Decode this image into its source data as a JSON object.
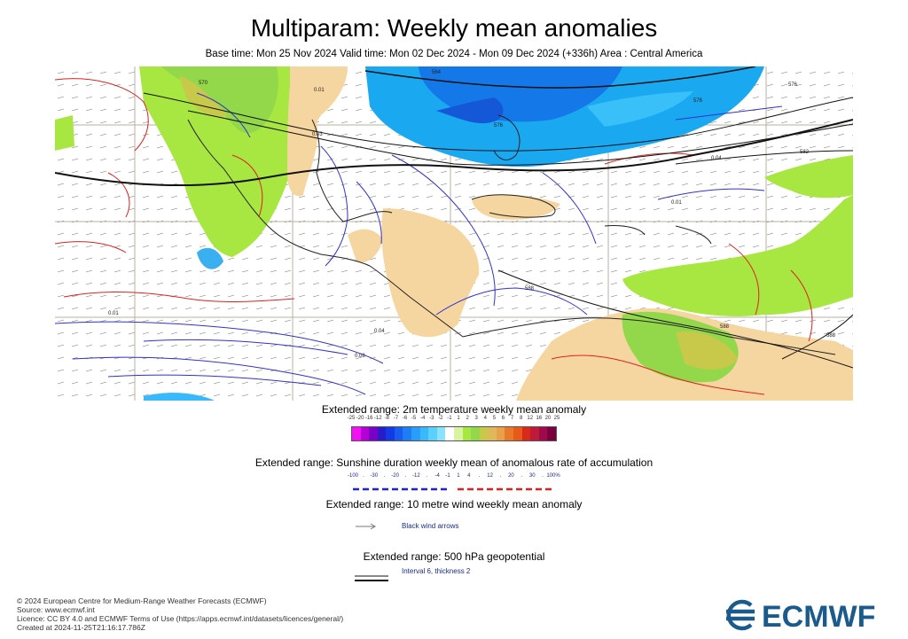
{
  "title": "Multiparam: Weekly mean anomalies",
  "subtitle": "Base time: Mon 25 Nov 2024 Valid time: Mon 02 Dec 2024 - Mon 09 Dec 2024 (+336h) Area : Central America",
  "map": {
    "contour_labels": [
      "564",
      "570",
      "576",
      "576",
      "576",
      "582",
      "588",
      "588",
      "588",
      "0.01",
      "0.01",
      "0.03",
      "0.04",
      "0.04",
      "0.08",
      "0.01"
    ]
  },
  "legends": {
    "temperature": {
      "title": "Extended range: 2m temperature weekly mean anomaly",
      "ticks": [
        "-25",
        "-20",
        "-16",
        "-12",
        "-8",
        "-7",
        "-6",
        "-5",
        "-4",
        "-3",
        "-2",
        "-1",
        "1",
        "2",
        "3",
        "4",
        "5",
        "6",
        "7",
        "8",
        "12",
        "16",
        "20",
        "25"
      ],
      "colors": [
        "#f40ff4",
        "#b400d6",
        "#7a00c8",
        "#2a1cc8",
        "#1439e6",
        "#1a5cf0",
        "#1e7cf6",
        "#2a9cfa",
        "#3ab8fc",
        "#5ad0fc",
        "#8ae2fc",
        "#ffffff",
        "#d8f4a0",
        "#a8e642",
        "#92d84a",
        "#c8c84a",
        "#e0b85a",
        "#e8a04a",
        "#e8782a",
        "#e85a1a",
        "#d82a1a",
        "#c01a3a",
        "#a00a4a",
        "#7a0040"
      ]
    },
    "sunshine": {
      "title": "Extended range: Sunshine duration weekly mean of anomalous rate of accumulation",
      "ticks": [
        "-100",
        ".",
        "-30",
        ".",
        "-20",
        ".",
        "-12",
        ".",
        "-4",
        "-1",
        "1",
        "4",
        ".",
        "12",
        ".",
        "20",
        ".",
        "30",
        ".",
        "100%"
      ],
      "negative_color": "#2020e0",
      "positive_color": "#e02020"
    },
    "wind": {
      "title": "Extended range: 10 metre wind weekly mean anomaly",
      "label": "Black wind arrows"
    },
    "geopotential": {
      "title": "Extended range: 500 hPa geopotential",
      "label": "Interval 6, thickness 2"
    }
  },
  "footer": {
    "line1": "© 2024 European Centre for Medium-Range Weather Forecasts (ECMWF)",
    "line2": "Source: www.ecmwf.int",
    "line3": "Licence: CC BY 4.0 and ECMWF Terms of Use (https://apps.ecmwf.int/datasets/licences/general/)",
    "line4": "Created at 2024-11-25T21:16:17.786Z"
  },
  "logo": {
    "text": "ECMWF",
    "color": "#1a5a8c"
  }
}
